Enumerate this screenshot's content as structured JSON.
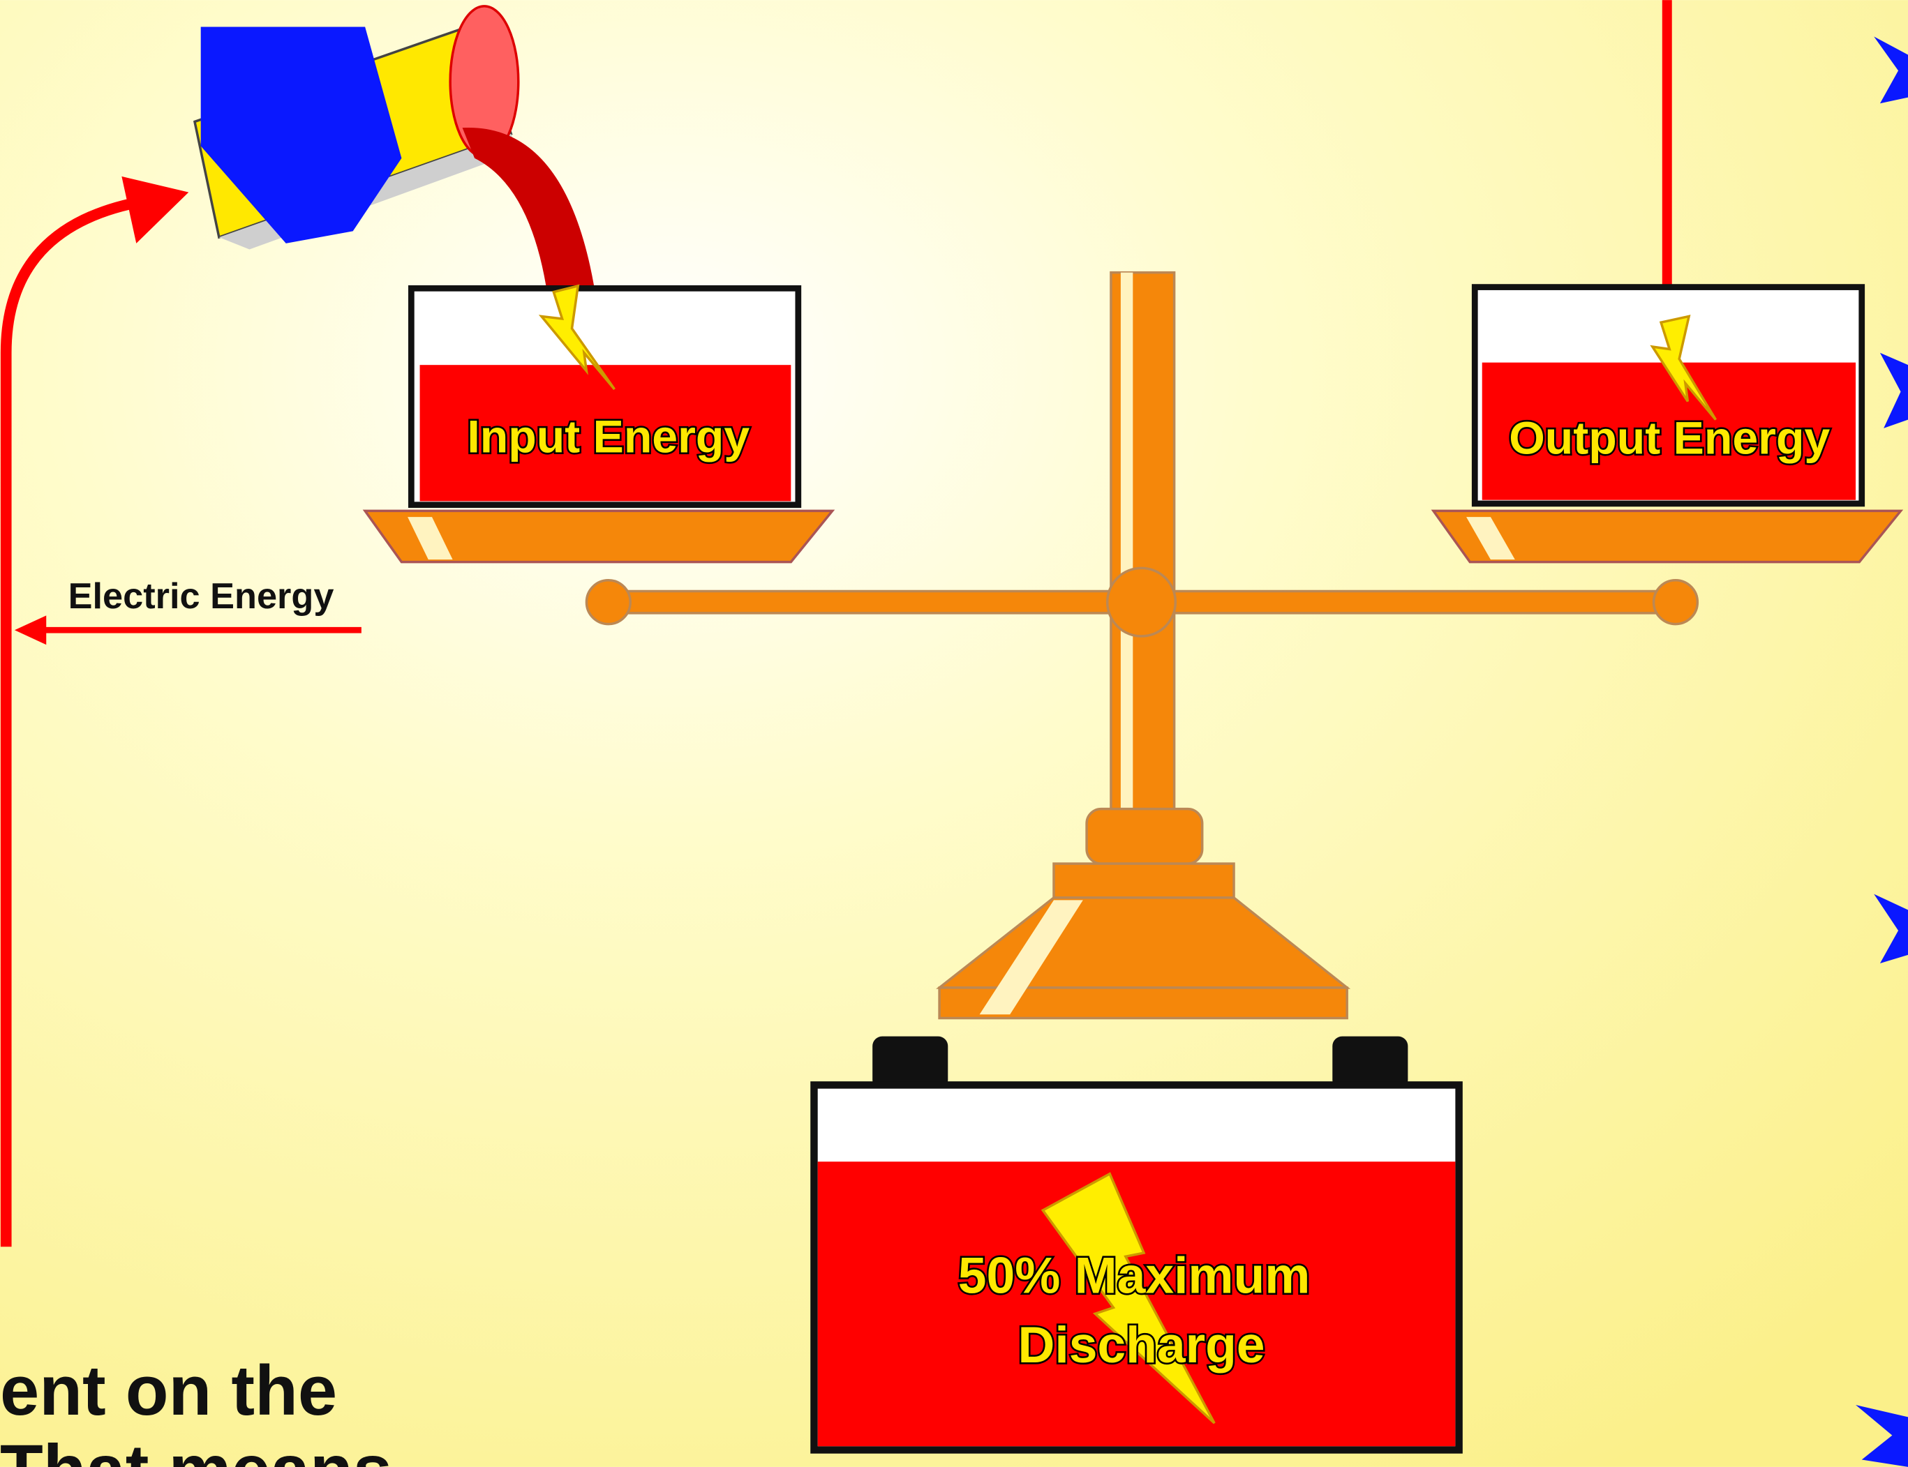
{
  "labels": {
    "electric_energy": "Electric Energy",
    "input_energy": "Input Energy",
    "output_energy": "Output Energy",
    "battery_line1": "50% Maximum",
    "battery_line2": "Discharge"
  },
  "body_text": [
    "ent on the",
    "That means"
  ]
}
